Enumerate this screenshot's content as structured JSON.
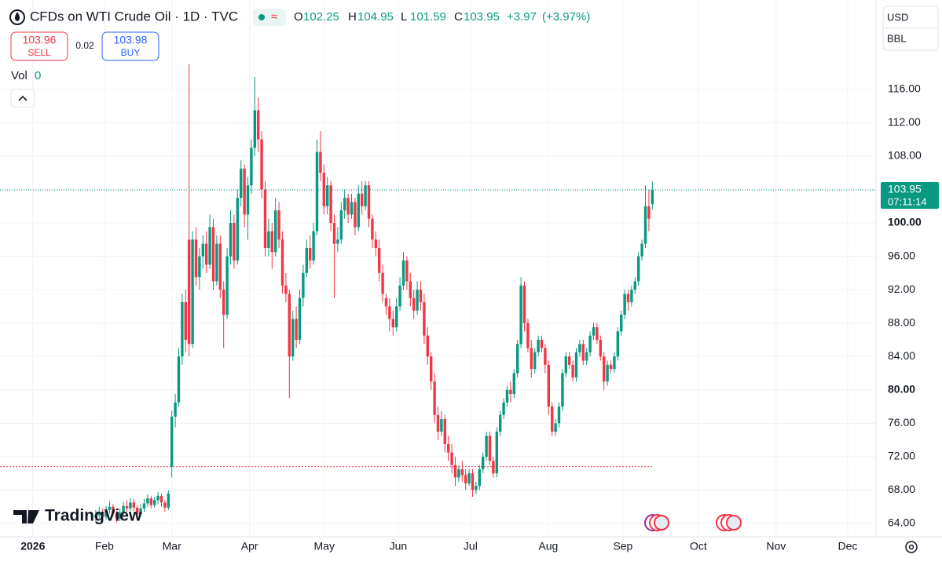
{
  "chart_data": {
    "type": "candlestick",
    "title": "CFDs on WTI Crude Oil · 1D · TVC",
    "ohlc_labels": [
      "O",
      "H",
      "L",
      "C"
    ],
    "change": "+3.97",
    "change_pct": "(+3.97%)",
    "sell": {
      "price": "103.96",
      "label": "SELL"
    },
    "buy": {
      "price": "103.98",
      "label": "BUY"
    },
    "spread": "0.02",
    "volume_label": "Vol",
    "volume": 0,
    "currency": "USD",
    "unit": "BBL",
    "countdown": "07:11:14",
    "brand": "TradingView",
    "up_color": "#089981",
    "down_color": "#f23645",
    "ref_line": {
      "value": 70.8,
      "color": "#f23645"
    },
    "grid": true,
    "xlim": [
      -27.7,
      225.7
    ],
    "xticks": [
      {
        "value": -18.2,
        "label": "2026"
      },
      {
        "value": 2.5,
        "label": "Feb"
      },
      {
        "value": 22,
        "label": "Mar"
      },
      {
        "value": 44.5,
        "label": "Apr"
      },
      {
        "value": 66.1,
        "label": "May"
      },
      {
        "value": 87.5,
        "label": "Jun"
      },
      {
        "value": 108.4,
        "label": "Jul"
      },
      {
        "value": 130.9,
        "label": "Aug"
      },
      {
        "value": 152.5,
        "label": "Sep"
      },
      {
        "value": 174.3,
        "label": "Oct"
      },
      {
        "value": 196.8,
        "label": "Nov"
      },
      {
        "value": 217.5,
        "label": "Dec"
      }
    ],
    "ylim": [
      62.4,
      126.7
    ],
    "yticks": [
      {
        "value": 64,
        "label": "64.00"
      },
      {
        "value": 68,
        "label": "68.00"
      },
      {
        "value": 72,
        "label": "72.00"
      },
      {
        "value": 76,
        "label": "76.00"
      },
      {
        "value": 80,
        "label": "80.00"
      },
      {
        "value": 84,
        "label": "84.00"
      },
      {
        "value": 88,
        "label": "88.00"
      },
      {
        "value": 92,
        "label": "92.00"
      },
      {
        "value": 96,
        "label": "96.00"
      },
      {
        "value": 100,
        "label": "100.00"
      },
      {
        "value": 104,
        "label": "104.00"
      },
      {
        "value": 108,
        "label": "108.00"
      },
      {
        "value": 112,
        "label": "112.00"
      },
      {
        "value": 116,
        "label": "116.00"
      }
    ],
    "candles": [
      [
        64.7,
        65.6,
        64.2,
        65.0
      ],
      [
        65.0,
        66.0,
        64.6,
        65.4
      ],
      [
        65.4,
        65.8,
        64.3,
        64.8
      ],
      [
        64.8,
        66.1,
        64.5,
        65.6
      ],
      [
        65.6,
        66.7,
        65.2,
        66.0
      ],
      [
        66.0,
        66.3,
        64.8,
        65.2
      ],
      [
        65.2,
        65.5,
        64.1,
        64.6
      ],
      [
        64.6,
        65.8,
        64.3,
        65.3
      ],
      [
        65.3,
        66.6,
        65.0,
        66.1
      ],
      [
        66.1,
        66.8,
        65.4,
        65.8
      ],
      [
        65.8,
        67.0,
        65.5,
        66.5
      ],
      [
        66.5,
        66.9,
        65.5,
        65.9
      ],
      [
        65.9,
        66.2,
        64.7,
        65.1
      ],
      [
        65.1,
        66.3,
        64.8,
        65.8
      ],
      [
        65.8,
        66.9,
        65.4,
        66.4
      ],
      [
        66.4,
        67.5,
        66.0,
        67.0
      ],
      [
        67.0,
        67.3,
        65.8,
        66.2
      ],
      [
        66.2,
        67.2,
        65.9,
        66.8
      ],
      [
        66.8,
        67.8,
        66.3,
        67.3
      ],
      [
        67.3,
        67.6,
        66.0,
        66.5
      ],
      [
        66.5,
        66.8,
        65.4,
        65.9
      ],
      [
        65.9,
        68.0,
        65.6,
        67.6
      ],
      [
        70.8,
        77.5,
        69.5,
        76.8
      ],
      [
        76.8,
        79.5,
        75.5,
        78.5
      ],
      [
        78.5,
        85.0,
        78.0,
        84.0
      ],
      [
        84.0,
        91.5,
        83.0,
        90.5
      ],
      [
        90.5,
        92.0,
        84.5,
        86.0
      ],
      [
        98.0,
        119.0,
        84.0,
        85.5
      ],
      [
        85.5,
        99.0,
        85.0,
        98.0
      ],
      [
        98.0,
        99.5,
        92.5,
        93.5
      ],
      [
        93.5,
        97.0,
        92.0,
        96.0
      ],
      [
        96.0,
        98.5,
        94.5,
        97.5
      ],
      [
        97.5,
        99.0,
        94.0,
        95.0
      ],
      [
        95.0,
        101.0,
        94.5,
        99.5
      ],
      [
        99.5,
        100.5,
        92.0,
        93.0
      ],
      [
        93.0,
        98.5,
        92.5,
        97.5
      ],
      [
        97.5,
        98.5,
        91.0,
        92.0
      ],
      [
        92.0,
        93.0,
        85.0,
        89.0
      ],
      [
        89.0,
        97.0,
        88.5,
        96.0
      ],
      [
        96.0,
        101.5,
        95.0,
        100.0
      ],
      [
        100.0,
        101.0,
        94.5,
        95.5
      ],
      [
        95.5,
        104.0,
        95.0,
        103.0
      ],
      [
        103.0,
        107.5,
        102.0,
        106.5
      ],
      [
        106.5,
        107.0,
        99.5,
        101.0
      ],
      [
        101.0,
        105.5,
        98.0,
        104.5
      ],
      [
        104.5,
        110.0,
        103.5,
        109.0
      ],
      [
        109.0,
        117.5,
        108.0,
        113.5
      ],
      [
        113.5,
        115.0,
        108.5,
        110.0
      ],
      [
        110.0,
        111.0,
        103.0,
        104.0
      ],
      [
        104.0,
        105.0,
        96.0,
        97.0
      ],
      [
        97.0,
        100.5,
        96.0,
        99.0
      ],
      [
        99.0,
        100.0,
        94.5,
        96.5
      ],
      [
        96.5,
        103.0,
        96.0,
        101.5
      ],
      [
        101.5,
        102.5,
        97.0,
        98.0
      ],
      [
        98.0,
        99.0,
        91.5,
        92.5
      ],
      [
        92.5,
        94.0,
        90.5,
        91.5
      ],
      [
        91.5,
        92.0,
        79.0,
        84.0
      ],
      [
        84.0,
        89.5,
        83.5,
        88.5
      ],
      [
        88.5,
        90.0,
        85.0,
        86.0
      ],
      [
        86.0,
        92.0,
        85.5,
        91.0
      ],
      [
        91.0,
        95.0,
        90.0,
        94.0
      ],
      [
        94.0,
        98.0,
        93.5,
        97.0
      ],
      [
        97.0,
        98.5,
        94.5,
        95.5
      ],
      [
        95.5,
        100.0,
        95.0,
        99.0
      ],
      [
        99.0,
        110.0,
        98.5,
        108.5
      ],
      [
        108.5,
        111.0,
        105.0,
        106.0
      ],
      [
        106.0,
        107.0,
        101.0,
        102.0
      ],
      [
        102.0,
        105.5,
        101.0,
        104.5
      ],
      [
        104.5,
        105.0,
        99.0,
        100.0
      ],
      [
        100.0,
        101.0,
        91.0,
        97.5
      ],
      [
        97.5,
        99.5,
        96.5,
        98.0
      ],
      [
        98.0,
        102.5,
        97.5,
        101.5
      ],
      [
        101.5,
        104.0,
        100.5,
        103.0
      ],
      [
        103.0,
        103.5,
        100.0,
        101.0
      ],
      [
        101.0,
        103.5,
        100.5,
        102.5
      ],
      [
        102.5,
        103.0,
        98.5,
        99.5
      ],
      [
        99.5,
        104.5,
        99.0,
        103.5
      ],
      [
        103.5,
        105.0,
        101.0,
        102.0
      ],
      [
        102.0,
        105.0,
        101.5,
        104.5
      ],
      [
        104.5,
        105.0,
        99.5,
        100.5
      ],
      [
        100.5,
        101.0,
        97.0,
        98.0
      ],
      [
        98.0,
        99.0,
        96.0,
        97.0
      ],
      [
        97.0,
        98.0,
        93.0,
        94.0
      ],
      [
        94.0,
        95.0,
        90.5,
        91.5
      ],
      [
        91.0,
        91.5,
        89.0,
        90.0
      ],
      [
        90.0,
        91.0,
        87.0,
        88.5
      ],
      [
        88.5,
        89.5,
        86.5,
        87.5
      ],
      [
        87.5,
        91.0,
        87.0,
        90.0
      ],
      [
        90.0,
        93.5,
        89.5,
        92.5
      ],
      [
        92.5,
        96.5,
        92.0,
        95.5
      ],
      [
        95.5,
        96.0,
        92.0,
        93.0
      ],
      [
        93.0,
        94.0,
        90.0,
        91.0
      ],
      [
        91.0,
        92.0,
        88.5,
        89.5
      ],
      [
        89.5,
        93.0,
        89.0,
        92.0
      ],
      [
        92.0,
        93.0,
        89.5,
        90.5
      ],
      [
        90.5,
        91.5,
        85.5,
        86.5
      ],
      [
        86.5,
        87.5,
        83.0,
        84.0
      ],
      [
        84.0,
        84.5,
        80.0,
        81.0
      ],
      [
        81.0,
        82.0,
        76.0,
        77.0
      ],
      [
        77.0,
        78.0,
        74.0,
        75.0
      ],
      [
        75.0,
        77.5,
        74.5,
        76.5
      ],
      [
        76.5,
        77.0,
        72.5,
        73.5
      ],
      [
        73.5,
        74.5,
        71.5,
        72.5
      ],
      [
        72.5,
        73.5,
        70.0,
        71.0
      ],
      [
        71.0,
        72.0,
        68.5,
        69.5
      ],
      [
        69.5,
        71.0,
        69.0,
        70.5
      ],
      [
        70.5,
        71.5,
        69.0,
        69.8
      ],
      [
        69.8,
        70.5,
        68.0,
        68.8
      ],
      [
        68.8,
        70.5,
        68.5,
        70.0
      ],
      [
        70.0,
        70.5,
        67.2,
        68.0
      ],
      [
        68.0,
        69.0,
        67.5,
        68.5
      ],
      [
        68.5,
        71.0,
        68.0,
        70.5
      ],
      [
        70.5,
        72.5,
        70.0,
        72.0
      ],
      [
        72.0,
        75.0,
        71.5,
        74.5
      ],
      [
        74.5,
        75.0,
        71.0,
        71.5
      ],
      [
        71.5,
        72.0,
        69.5,
        70.0
      ],
      [
        70.0,
        75.5,
        69.5,
        75.0
      ],
      [
        75.0,
        77.5,
        74.5,
        77.0
      ],
      [
        77.0,
        79.0,
        76.5,
        78.5
      ],
      [
        78.5,
        80.5,
        78.0,
        80.0
      ],
      [
        80.0,
        81.0,
        78.5,
        79.5
      ],
      [
        79.5,
        82.5,
        79.0,
        82.0
      ],
      [
        82.0,
        86.0,
        81.5,
        85.5
      ],
      [
        85.5,
        93.5,
        85.0,
        92.5
      ],
      [
        92.5,
        93.0,
        87.0,
        88.0
      ],
      [
        88.0,
        88.5,
        84.5,
        85.0
      ],
      [
        85.0,
        86.0,
        81.5,
        82.5
      ],
      [
        82.5,
        85.0,
        82.0,
        84.5
      ],
      [
        84.5,
        86.5,
        84.0,
        86.0
      ],
      [
        86.0,
        86.5,
        84.5,
        85.0
      ],
      [
        85.0,
        85.5,
        82.0,
        83.0
      ],
      [
        83.0,
        83.5,
        77.0,
        78.0
      ],
      [
        78.0,
        78.5,
        74.5,
        75.0
      ],
      [
        75.0,
        76.5,
        74.5,
        76.0
      ],
      [
        76.0,
        78.5,
        75.5,
        78.0
      ],
      [
        78.0,
        82.5,
        77.5,
        82.0
      ],
      [
        82.0,
        84.5,
        81.5,
        84.0
      ],
      [
        84.0,
        84.5,
        82.5,
        83.0
      ],
      [
        83.0,
        83.5,
        81.0,
        81.5
      ],
      [
        81.5,
        85.0,
        81.0,
        84.5
      ],
      [
        84.5,
        86.0,
        84.0,
        85.5
      ],
      [
        85.5,
        86.0,
        83.0,
        83.5
      ],
      [
        83.5,
        85.0,
        83.0,
        84.5
      ],
      [
        84.5,
        87.0,
        84.0,
        86.5
      ],
      [
        86.5,
        88.0,
        86.0,
        87.5
      ],
      [
        87.5,
        88.0,
        85.5,
        86.0
      ],
      [
        86.0,
        86.5,
        83.5,
        84.0
      ],
      [
        84.0,
        84.5,
        80.0,
        81.0
      ],
      [
        81.0,
        83.5,
        80.5,
        83.0
      ],
      [
        83.0,
        83.5,
        82.0,
        82.5
      ],
      [
        82.5,
        84.5,
        82.0,
        84.0
      ],
      [
        84.0,
        87.5,
        83.5,
        87.0
      ],
      [
        87.0,
        89.5,
        86.5,
        89.0
      ],
      [
        89.0,
        92.0,
        88.5,
        91.5
      ],
      [
        91.5,
        92.0,
        89.5,
        90.5
      ],
      [
        90.5,
        92.5,
        90.0,
        92.0
      ],
      [
        92.0,
        93.5,
        91.5,
        93.0
      ],
      [
        93.0,
        96.5,
        92.5,
        96.0
      ],
      [
        96.0,
        98.0,
        95.5,
        97.5
      ],
      [
        97.5,
        104.5,
        97.0,
        102.0
      ],
      [
        102.0,
        104.0,
        99.0,
        100.5
      ],
      [
        102.25,
        104.95,
        101.59,
        103.95
      ]
    ]
  }
}
